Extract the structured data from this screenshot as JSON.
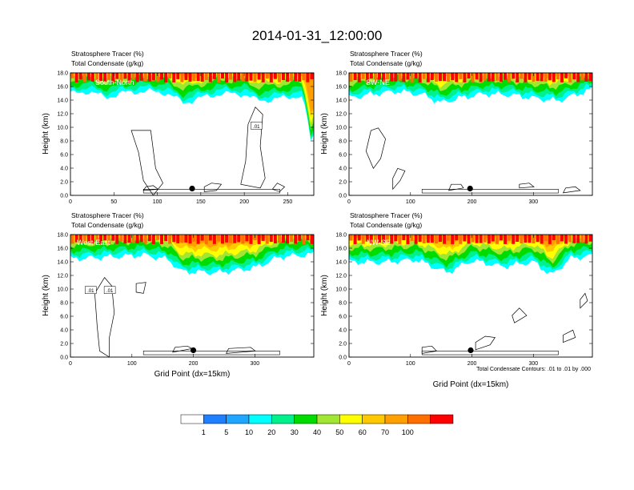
{
  "figure_title": "2014-01-31_12:00:00",
  "colors": {
    "levels": [
      "#ffffff",
      "#1e7fff",
      "#1fa6ff",
      "#00ffff",
      "#00f08c",
      "#00dc00",
      "#a0e632",
      "#ffff00",
      "#ffc800",
      "#ffa000",
      "#ff6e00",
      "#ff0000"
    ],
    "contour": "#000000",
    "marker": "#000000"
  },
  "chart_data": [
    {
      "type": "heatmap",
      "panel": "South-North",
      "title_lines": [
        "Stratosphere Tracer   (%)",
        "Total Condensate   (g/kg)"
      ],
      "xlim": [
        0,
        280
      ],
      "ylim": [
        0,
        18
      ],
      "xticks": [
        "0",
        "50",
        "100",
        "150",
        "200",
        "250"
      ],
      "xtick_values": [
        0,
        50,
        100,
        150,
        200,
        250
      ],
      "yticks": [
        "0.0",
        "2.0",
        "4.0",
        "6.0",
        "8.0",
        "10.0",
        "12.0",
        "14.0",
        "16.0",
        "18.0"
      ],
      "ylabel": "Height (km)",
      "xlabel": "",
      "tracer_base_km": [
        [
          0,
          14.9
        ],
        [
          20,
          15.3
        ],
        [
          40,
          14.4
        ],
        [
          60,
          15.0
        ],
        [
          80,
          15.3
        ],
        [
          110,
          15.1
        ],
        [
          130,
          13.6
        ],
        [
          150,
          14.3
        ],
        [
          170,
          14.9
        ],
        [
          200,
          14.9
        ],
        [
          215,
          13.9
        ],
        [
          240,
          14.2
        ],
        [
          265,
          14.7
        ],
        [
          272,
          12.0
        ],
        [
          276,
          7.6
        ],
        [
          280,
          8.8
        ]
      ],
      "marker": {
        "x": 140,
        "y": 1.0
      },
      "contour_labels": [
        {
          "text": ".01",
          "x": 214,
          "y": 10.2
        }
      ]
    },
    {
      "type": "heatmap",
      "panel": "SW-NE",
      "title_lines": [
        "Stratosphere Tracer   (%)",
        "Total Condensate   (g/kg)"
      ],
      "xlim": [
        0,
        396
      ],
      "ylim": [
        0,
        18
      ],
      "xticks": [
        "0",
        "100",
        "200",
        "300"
      ],
      "xtick_values": [
        0,
        100,
        200,
        300
      ],
      "yticks": [
        "0.0",
        "2.0",
        "4.0",
        "6.0",
        "8.0",
        "10.0",
        "12.0",
        "14.0",
        "16.0",
        "18.0"
      ],
      "ylabel": "Height (km)",
      "xlabel": "",
      "tracer_base_km": [
        [
          0,
          14.3
        ],
        [
          40,
          14.9
        ],
        [
          80,
          15.3
        ],
        [
          120,
          14.8
        ],
        [
          150,
          13.6
        ],
        [
          180,
          14.3
        ],
        [
          220,
          14.9
        ],
        [
          260,
          14.8
        ],
        [
          300,
          14.3
        ],
        [
          340,
          13.9
        ],
        [
          396,
          15.6
        ]
      ],
      "marker": {
        "x": 197,
        "y": 1.0
      },
      "contour_labels": []
    },
    {
      "type": "heatmap",
      "panel": "West-East",
      "title_lines": [
        "Stratosphere Tracer   (%)",
        "Total Condensate   (g/kg)"
      ],
      "xlim": [
        0,
        396
      ],
      "ylim": [
        0,
        18
      ],
      "xticks": [
        "0",
        "100",
        "200",
        "300"
      ],
      "xtick_values": [
        0,
        100,
        200,
        300
      ],
      "yticks": [
        "0.0",
        "2.0",
        "4.0",
        "6.0",
        "8.0",
        "10.0",
        "12.0",
        "14.0",
        "16.0",
        "18.0"
      ],
      "ylabel": "Height (km)",
      "xlabel": "Grid Point (dx=15km)",
      "tracer_base_km": [
        [
          0,
          14.4
        ],
        [
          60,
          14.7
        ],
        [
          120,
          15.0
        ],
        [
          160,
          14.3
        ],
        [
          180,
          12.6
        ],
        [
          240,
          12.4
        ],
        [
          300,
          13.1
        ],
        [
          340,
          14.7
        ],
        [
          396,
          15.1
        ]
      ],
      "marker": {
        "x": 200,
        "y": 1.0
      },
      "contour_labels": [
        {
          "text": ".01",
          "x": 33,
          "y": 9.8
        },
        {
          "text": ".01",
          "x": 64,
          "y": 9.8
        }
      ]
    },
    {
      "type": "heatmap",
      "panel": "NW-SE",
      "title_lines": [
        "Stratosphere Tracer   (%)",
        "Total Condensate   (g/kg)"
      ],
      "xlim": [
        0,
        396
      ],
      "ylim": [
        0,
        18
      ],
      "xticks": [
        "0",
        "100",
        "200",
        "300"
      ],
      "xtick_values": [
        0,
        100,
        200,
        300
      ],
      "yticks": [
        "0.0",
        "2.0",
        "4.0",
        "6.0",
        "8.0",
        "10.0",
        "12.0",
        "14.0",
        "16.0",
        "18.0"
      ],
      "ylabel": "Height (km)",
      "xlabel": "Grid Point (dx=15km)",
      "tracer_base_km": [
        [
          0,
          14.0
        ],
        [
          50,
          13.9
        ],
        [
          110,
          14.3
        ],
        [
          160,
          12.4
        ],
        [
          200,
          14.2
        ],
        [
          250,
          13.3
        ],
        [
          300,
          14.0
        ],
        [
          330,
          12.0
        ],
        [
          360,
          14.5
        ],
        [
          396,
          14.9
        ]
      ],
      "marker": {
        "x": 198,
        "y": 1.0
      },
      "contour_labels": [],
      "note": "Total Condensate Contours: .01 to .01 by .000"
    }
  ],
  "colorbar": {
    "labels": [
      "1",
      "5",
      "10",
      "20",
      "30",
      "40",
      "50",
      "60",
      "70",
      "100"
    ],
    "colors": [
      "#ffffff",
      "#1e7fff",
      "#1fa6ff",
      "#00ffff",
      "#00f08c",
      "#00dc00",
      "#a0e632",
      "#ffff00",
      "#ffc800",
      "#ffa000",
      "#ff6e00",
      "#ff0000"
    ]
  }
}
